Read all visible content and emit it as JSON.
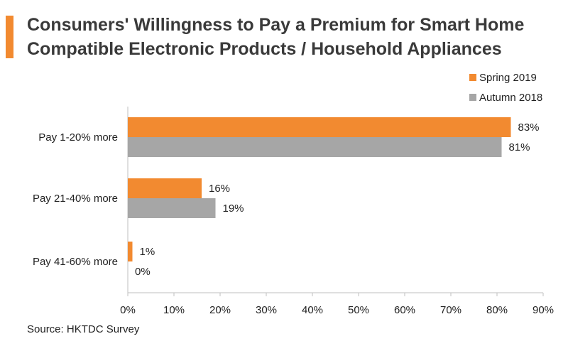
{
  "title_lines": [
    "Consumers' Willingness to Pay a Premium for Smart Home",
    "Compatible Electronic Products / Household Appliances"
  ],
  "source": "Source: HKTDC Survey",
  "colors": {
    "accent": "#f28a30",
    "series_spring": "#f28a30",
    "series_autumn": "#a6a6a6"
  },
  "chart_data": {
    "type": "bar",
    "orientation": "horizontal",
    "categories": [
      "Pay 1-20% more",
      "Pay 21-40% more",
      "Pay 41-60% more"
    ],
    "series": [
      {
        "name": "Spring 2019",
        "color": "#f28a30",
        "values": [
          83,
          16,
          1
        ],
        "labels": [
          "83%",
          "16%",
          "1%"
        ]
      },
      {
        "name": "Autumn 2018",
        "color": "#a6a6a6",
        "values": [
          81,
          19,
          0
        ],
        "labels": [
          "81%",
          "19%",
          "0%"
        ]
      }
    ],
    "xlim": [
      0,
      90
    ],
    "xticks": [
      0,
      10,
      20,
      30,
      40,
      50,
      60,
      70,
      80,
      90
    ],
    "xtick_labels": [
      "0%",
      "10%",
      "20%",
      "30%",
      "40%",
      "50%",
      "60%",
      "70%",
      "80%",
      "90%"
    ],
    "grid": false,
    "legend_position": "top-right"
  }
}
